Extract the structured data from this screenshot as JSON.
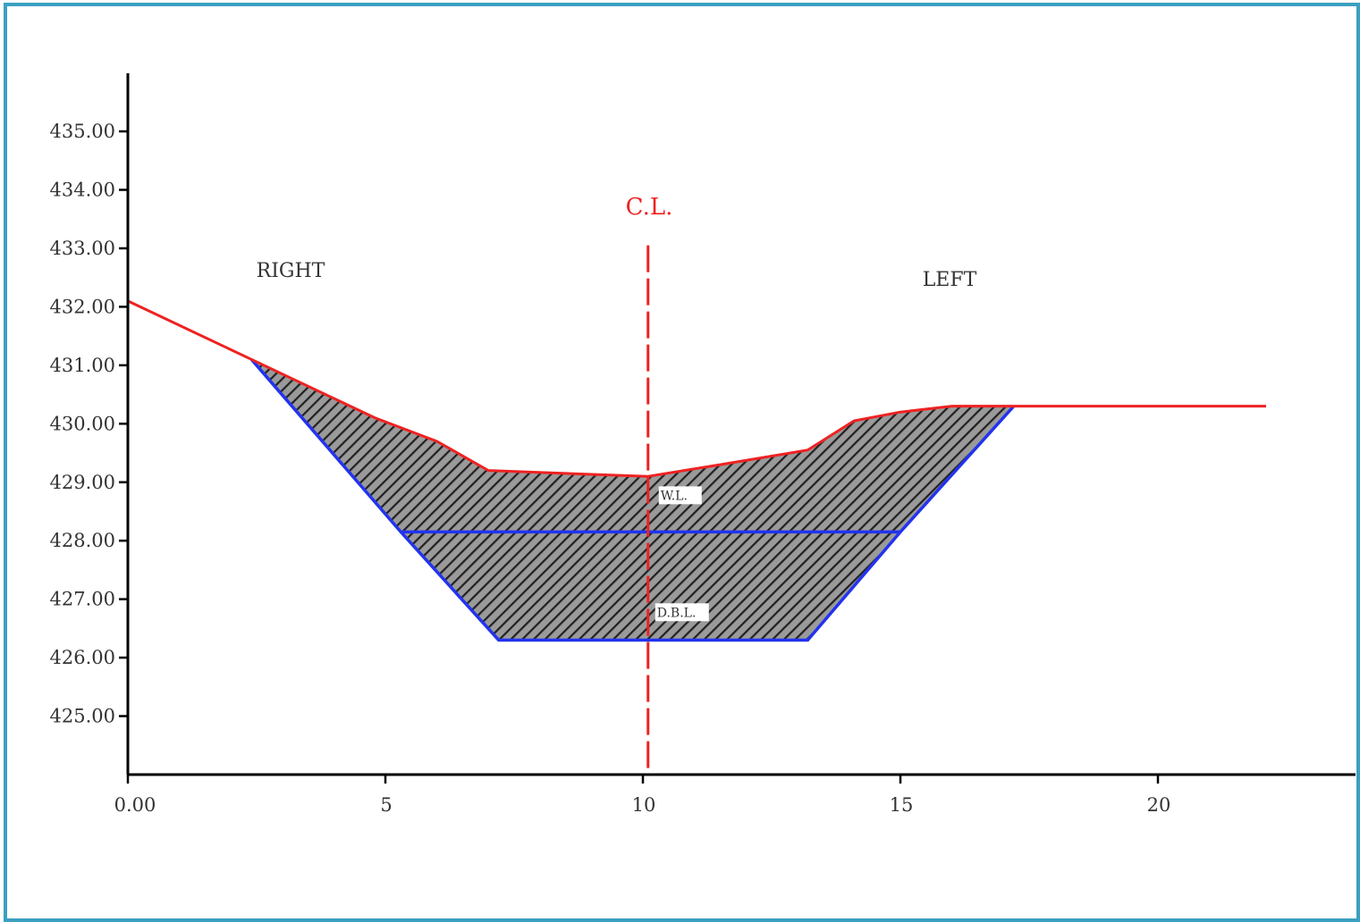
{
  "colors": {
    "frame": "#3ba0c2",
    "ground_line": "#ee2222",
    "excavation_line": "#2233ee",
    "hatch": "#222222",
    "axis": "#000000"
  },
  "chart_data": {
    "type": "line",
    "xlim": [
      0,
      24
    ],
    "ylim": [
      424,
      436
    ],
    "x_ticks": [
      0,
      5,
      10,
      15,
      20
    ],
    "x_tick_labels": [
      "0.00",
      "5",
      "10",
      "15",
      "20"
    ],
    "y_ticks": [
      425,
      426,
      427,
      428,
      429,
      430,
      431,
      432,
      433,
      434,
      435
    ],
    "y_tick_labels": [
      "425.00",
      "426.00",
      "427.00",
      "428.00",
      "429.00",
      "430.00",
      "431.00",
      "432.00",
      "433.00",
      "434.00",
      "435.00"
    ],
    "ground_profile": {
      "x": [
        0,
        2.4,
        4.8,
        6,
        7,
        8.5,
        10.1,
        11.5,
        13.2,
        14.1,
        15,
        16,
        17.2,
        22.1
      ],
      "y": [
        432.1,
        431.1,
        430.1,
        429.7,
        429.2,
        429.15,
        429.1,
        429.3,
        429.55,
        430.05,
        430.2,
        430.3,
        430.3,
        430.3
      ]
    },
    "excavation_profile": {
      "x": [
        2.4,
        5.3,
        7.2,
        13.2,
        15,
        17.2
      ],
      "y": [
        431.1,
        428.15,
        426.3,
        426.3,
        428.15,
        430.3
      ]
    },
    "water_level": {
      "x": [
        5.3,
        15
      ],
      "y": 428.15,
      "label": "W.L."
    },
    "bed_level": {
      "x": [
        7.2,
        13.2
      ],
      "y": 426.3,
      "label": "D.B.L."
    },
    "centerline": {
      "x": 10.1,
      "y_range": [
        424,
        433.05
      ],
      "label": "C.L."
    },
    "annotations": {
      "right": "RIGHT",
      "left": "LEFT"
    }
  }
}
